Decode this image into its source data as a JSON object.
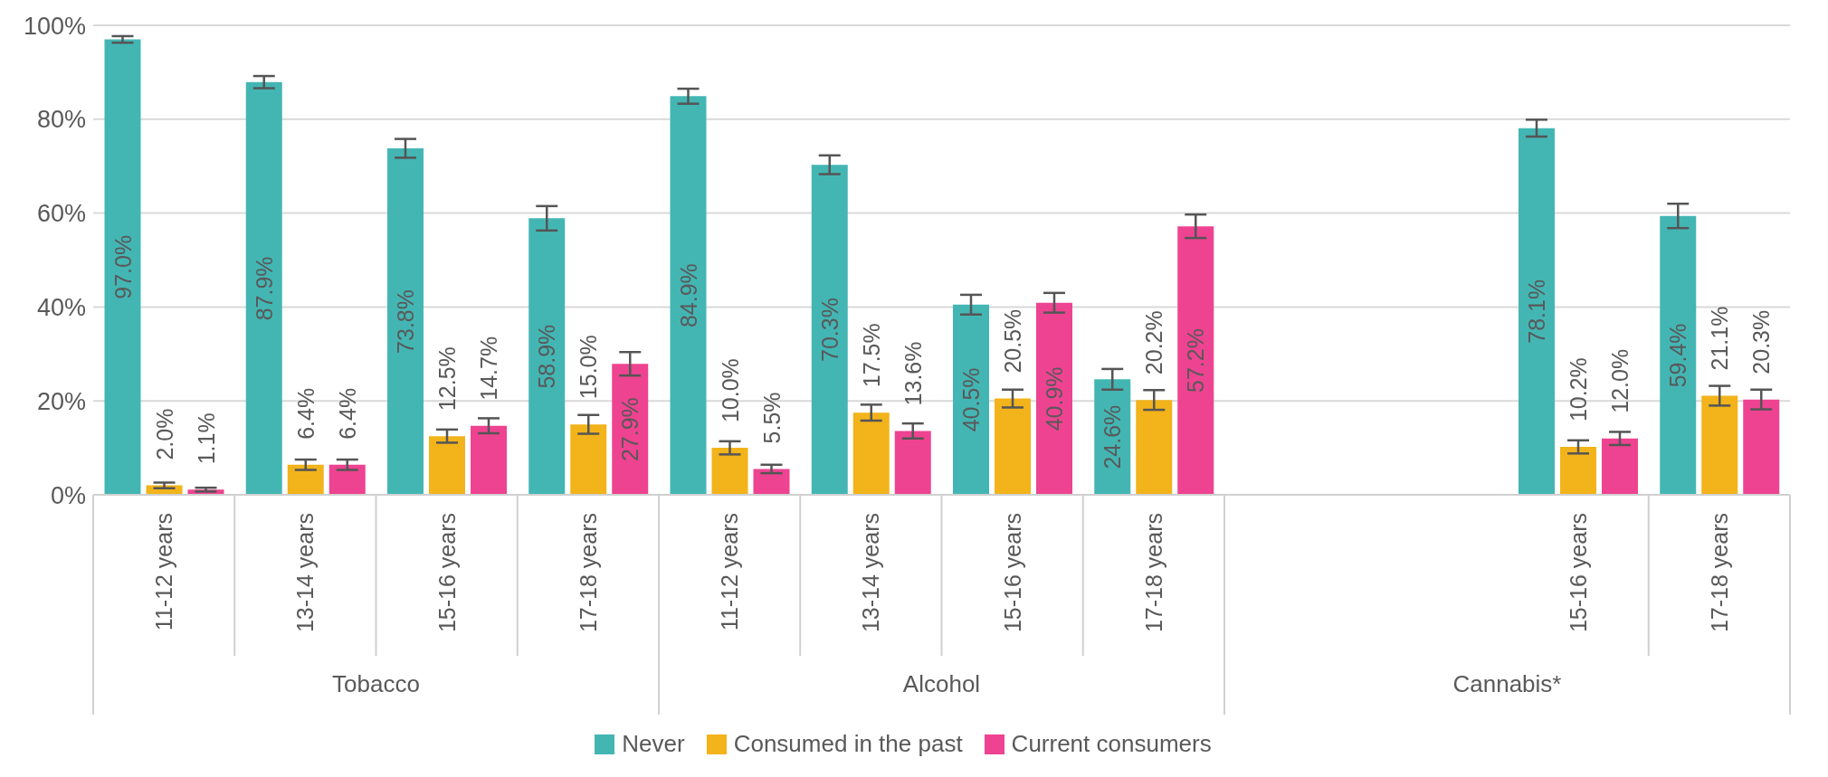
{
  "chart_data": {
    "type": "bar",
    "categories": [
      "11-12 years",
      "13-14 years",
      "15-16 years",
      "17-18 years",
      "11-12 years",
      "13-14 years",
      "15-16 years",
      "17-18 years",
      null,
      null,
      "15-16 years",
      "17-18 years"
    ],
    "annotations": [
      "Tobacco",
      "Alcohol",
      "Cannabis*"
    ],
    "series": [
      {
        "name": "Never",
        "color": "#43b6b4",
        "values": [
          97.0,
          87.9,
          73.8,
          58.9,
          84.9,
          70.3,
          40.5,
          24.6,
          null,
          null,
          78.1,
          59.4
        ],
        "errors": [
          0.7,
          1.3,
          2.0,
          2.6,
          1.6,
          2.0,
          2.1,
          2.2,
          null,
          null,
          1.8,
          2.6
        ],
        "value_labels": [
          "97.0%",
          "87.9%",
          "73.8%",
          "58.9%",
          "84.9%",
          "70.3%",
          "40.5%",
          "24.6%",
          null,
          null,
          "78.1%",
          "59.4%"
        ]
      },
      {
        "name": "Consumed in the past",
        "color": "#f2b31b",
        "values": [
          2.0,
          6.4,
          12.5,
          15.0,
          10.0,
          17.5,
          20.5,
          20.2,
          null,
          null,
          10.2,
          21.1
        ],
        "errors": [
          0.6,
          1.1,
          1.4,
          2.0,
          1.4,
          1.7,
          1.9,
          2.1,
          null,
          null,
          1.4,
          2.1
        ],
        "value_labels": [
          "2.0%",
          "6.4%",
          "12.5%",
          "15.0%",
          "10.0%",
          "17.5%",
          "20.5%",
          "20.2%",
          null,
          null,
          "10.2%",
          "21.1%"
        ]
      },
      {
        "name": "Current consumers",
        "color": "#ee4391",
        "values": [
          1.1,
          6.4,
          14.7,
          27.9,
          5.5,
          13.6,
          40.9,
          57.2,
          null,
          null,
          12.0,
          20.3
        ],
        "errors": [
          0.4,
          1.1,
          1.6,
          2.5,
          0.9,
          1.6,
          2.1,
          2.5,
          null,
          null,
          1.4,
          2.1
        ],
        "value_labels": [
          "1.1%",
          "6.4%",
          "14.7%",
          "27.9%",
          "5.5%",
          "13.6%",
          "40.9%",
          "57.2%",
          null,
          null,
          "12.0%",
          "20.3%"
        ]
      }
    ],
    "ylim": [
      0,
      100
    ],
    "yticks": [
      {
        "value": 0,
        "label": "0%"
      },
      {
        "value": 20,
        "label": "20%"
      },
      {
        "value": 40,
        "label": "40%"
      },
      {
        "value": 60,
        "label": "60%"
      },
      {
        "value": 80,
        "label": "80%"
      },
      {
        "value": 100,
        "label": "100%"
      }
    ],
    "grid": "y",
    "legend": "bottom"
  }
}
